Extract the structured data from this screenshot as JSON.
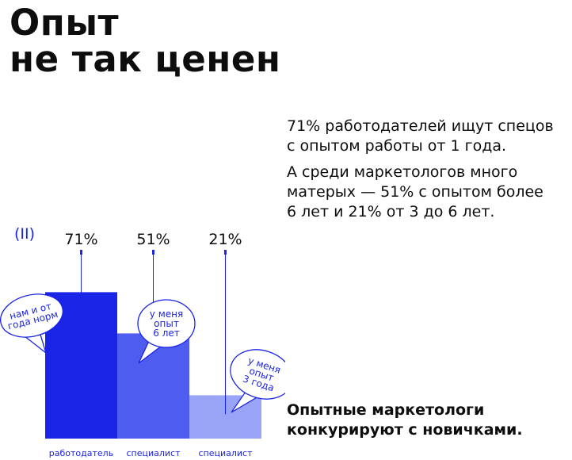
{
  "header": {
    "title_line1": "Опыт",
    "title_line2": "не так ценен"
  },
  "description": {
    "p1_line1": "71% работодателей ищут спецов",
    "p1_line2": "с опытом работы от 1 года.",
    "p2_line1": "А среди маркетологов много",
    "p2_line2": "матерых — 51% с опытом более",
    "p2_line3": "6 лет и 21% от 3 до 6 лет."
  },
  "conclusion": {
    "line1": "Опытные маркетологи",
    "line2": "конкурируют с новичками."
  },
  "marker": "(II)",
  "chart_data": {
    "type": "bar",
    "categories": [
      "работодатель",
      "специалист",
      "специалист"
    ],
    "values": [
      71,
      51,
      21
    ],
    "value_labels": [
      "71%",
      "51%",
      "21%"
    ],
    "colors": [
      "#1a24e6",
      "#4f5cf0",
      "#9aa4f7"
    ],
    "annotations": [
      {
        "lines": [
          "нам и от",
          "года норм"
        ]
      },
      {
        "lines": [
          "у меня",
          "опыт",
          "6 лет"
        ]
      },
      {
        "lines": [
          "у меня",
          "опыт",
          "3 года"
        ]
      }
    ],
    "ylim": [
      0,
      100
    ],
    "grid": false,
    "legend": "none"
  }
}
